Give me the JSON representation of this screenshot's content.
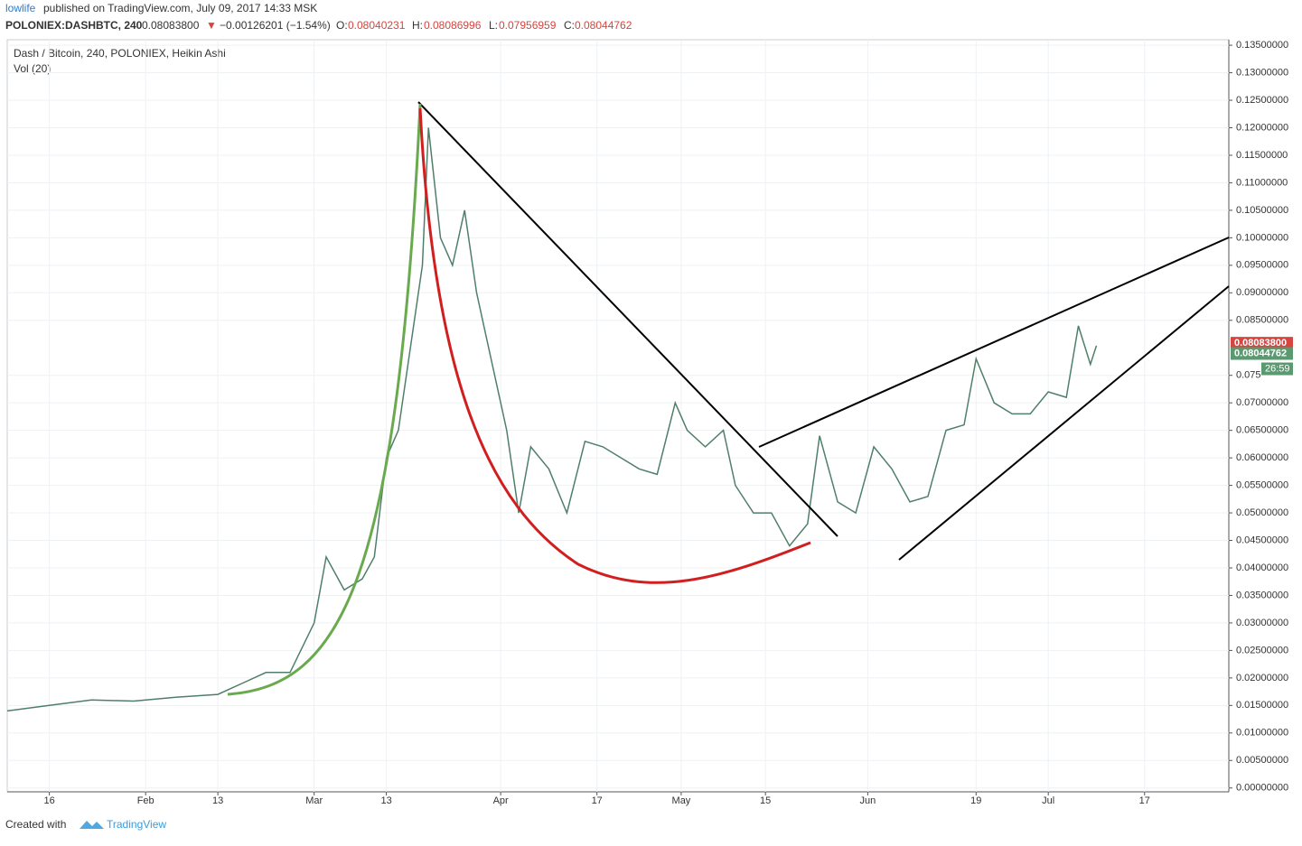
{
  "header": {
    "user": "lowlife",
    "published": "published on TradingView.com, July 09, 2017 14:33 MSK",
    "symbol": "POLONIEX:DASHBTC, 240",
    "last": "0.08083800",
    "arrow": "▼",
    "change": "−0.00126201 (−1.54%)",
    "o_label": "O:",
    "o": "0.08040231",
    "h_label": "H:",
    "h": "0.08086996",
    "l_label": "L:",
    "l": "0.07956959",
    "c_label": "C:",
    "c": "0.08044762"
  },
  "chart_data": {
    "type": "line",
    "legend_title": "Dash / Bitcoin, 240, POLONIEX, Heikin Ashi",
    "volume_label": "Vol (20)",
    "x": [
      "2017-01-09",
      "2017-01-16",
      "2017-01-23",
      "2017-01-30",
      "2017-02-06",
      "2017-02-13",
      "2017-02-17",
      "2017-02-21",
      "2017-02-25",
      "2017-03-01",
      "2017-03-03",
      "2017-03-06",
      "2017-03-09",
      "2017-03-11",
      "2017-03-13",
      "2017-03-15",
      "2017-03-17",
      "2017-03-19",
      "2017-03-20",
      "2017-03-22",
      "2017-03-24",
      "2017-03-26",
      "2017-03-28",
      "2017-03-30",
      "2017-04-02",
      "2017-04-04",
      "2017-04-06",
      "2017-04-09",
      "2017-04-12",
      "2017-04-15",
      "2017-04-18",
      "2017-04-21",
      "2017-04-24",
      "2017-04-27",
      "2017-04-30",
      "2017-05-02",
      "2017-05-05",
      "2017-05-08",
      "2017-05-10",
      "2017-05-13",
      "2017-05-16",
      "2017-05-19",
      "2017-05-22",
      "2017-05-24",
      "2017-05-27",
      "2017-05-30",
      "2017-06-02",
      "2017-06-05",
      "2017-06-08",
      "2017-06-11",
      "2017-06-14",
      "2017-06-17",
      "2017-06-19",
      "2017-06-22",
      "2017-06-25",
      "2017-06-28",
      "2017-07-01",
      "2017-07-04",
      "2017-07-06",
      "2017-07-08",
      "2017-07-09"
    ],
    "series": [
      {
        "name": "DASHBTC",
        "color": "#4f7f6a",
        "values": [
          0.014,
          0.015,
          0.016,
          0.0158,
          0.0165,
          0.017,
          0.019,
          0.021,
          0.021,
          0.03,
          0.042,
          0.036,
          0.038,
          0.042,
          0.06,
          0.065,
          0.08,
          0.095,
          0.12,
          0.1,
          0.095,
          0.105,
          0.09,
          0.08,
          0.065,
          0.05,
          0.062,
          0.058,
          0.05,
          0.063,
          0.062,
          0.06,
          0.058,
          0.057,
          0.07,
          0.065,
          0.062,
          0.065,
          0.055,
          0.05,
          0.05,
          0.044,
          0.048,
          0.064,
          0.052,
          0.05,
          0.062,
          0.058,
          0.052,
          0.053,
          0.065,
          0.066,
          0.078,
          0.07,
          0.068,
          0.068,
          0.072,
          0.071,
          0.084,
          0.077,
          0.0804
        ]
      }
    ],
    "xlim": [
      "2017-01-09",
      "2017-07-31"
    ],
    "xticks": [
      {
        "value": "2017-01-16",
        "label": "16"
      },
      {
        "value": "2017-02-01",
        "label": "Feb"
      },
      {
        "value": "2017-02-13",
        "label": "13"
      },
      {
        "value": "2017-03-01",
        "label": "Mar"
      },
      {
        "value": "2017-03-13",
        "label": "13"
      },
      {
        "value": "2017-04-01",
        "label": "Apr"
      },
      {
        "value": "2017-04-17",
        "label": "17"
      },
      {
        "value": "2017-05-01",
        "label": "May"
      },
      {
        "value": "2017-05-15",
        "label": "15"
      },
      {
        "value": "2017-06-01",
        "label": "Jun"
      },
      {
        "value": "2017-06-19",
        "label": "19"
      },
      {
        "value": "2017-07-01",
        "label": "Jul"
      },
      {
        "value": "2017-07-17",
        "label": "17"
      }
    ],
    "ylim": [
      -0.0007,
      0.136
    ],
    "yticks": [
      {
        "value": 0,
        "label": "0.00000000"
      },
      {
        "value": 0.005,
        "label": "0.00500000"
      },
      {
        "value": 0.01,
        "label": "0.01000000"
      },
      {
        "value": 0.015,
        "label": "0.01500000"
      },
      {
        "value": 0.02,
        "label": "0.02000000"
      },
      {
        "value": 0.025,
        "label": "0.02500000"
      },
      {
        "value": 0.03,
        "label": "0.03000000"
      },
      {
        "value": 0.035,
        "label": "0.03500000"
      },
      {
        "value": 0.04,
        "label": "0.04000000"
      },
      {
        "value": 0.045,
        "label": "0.04500000"
      },
      {
        "value": 0.05,
        "label": "0.05000000"
      },
      {
        "value": 0.055,
        "label": "0.05500000"
      },
      {
        "value": 0.06,
        "label": "0.06000000"
      },
      {
        "value": 0.065,
        "label": "0.06500000"
      },
      {
        "value": 0.07,
        "label": "0.07000000"
      },
      {
        "value": 0.075,
        "label": "0.075"
      },
      {
        "value": 0.085,
        "label": "0.08500000"
      },
      {
        "value": 0.09,
        "label": "0.09000000"
      },
      {
        "value": 0.095,
        "label": "0.09500000"
      },
      {
        "value": 0.1,
        "label": "0.10000000"
      },
      {
        "value": 0.105,
        "label": "0.10500000"
      },
      {
        "value": 0.11,
        "label": "0.11000000"
      },
      {
        "value": 0.115,
        "label": "0.11500000"
      },
      {
        "value": 0.12,
        "label": "0.12000000"
      },
      {
        "value": 0.125,
        "label": "0.12500000"
      },
      {
        "value": 0.13,
        "label": "0.13000000"
      },
      {
        "value": 0.135,
        "label": "0.13500000"
      }
    ],
    "grid": true,
    "price_labels": [
      {
        "value": 0.080838,
        "label": "0.08083800",
        "color": "#d6453f"
      },
      {
        "value": 0.08044762,
        "label": "0.08044762",
        "color": "#5b9a71"
      }
    ],
    "countdown": "26:59"
  },
  "footer": {
    "created": "Created with",
    "brand": "TradingView"
  }
}
